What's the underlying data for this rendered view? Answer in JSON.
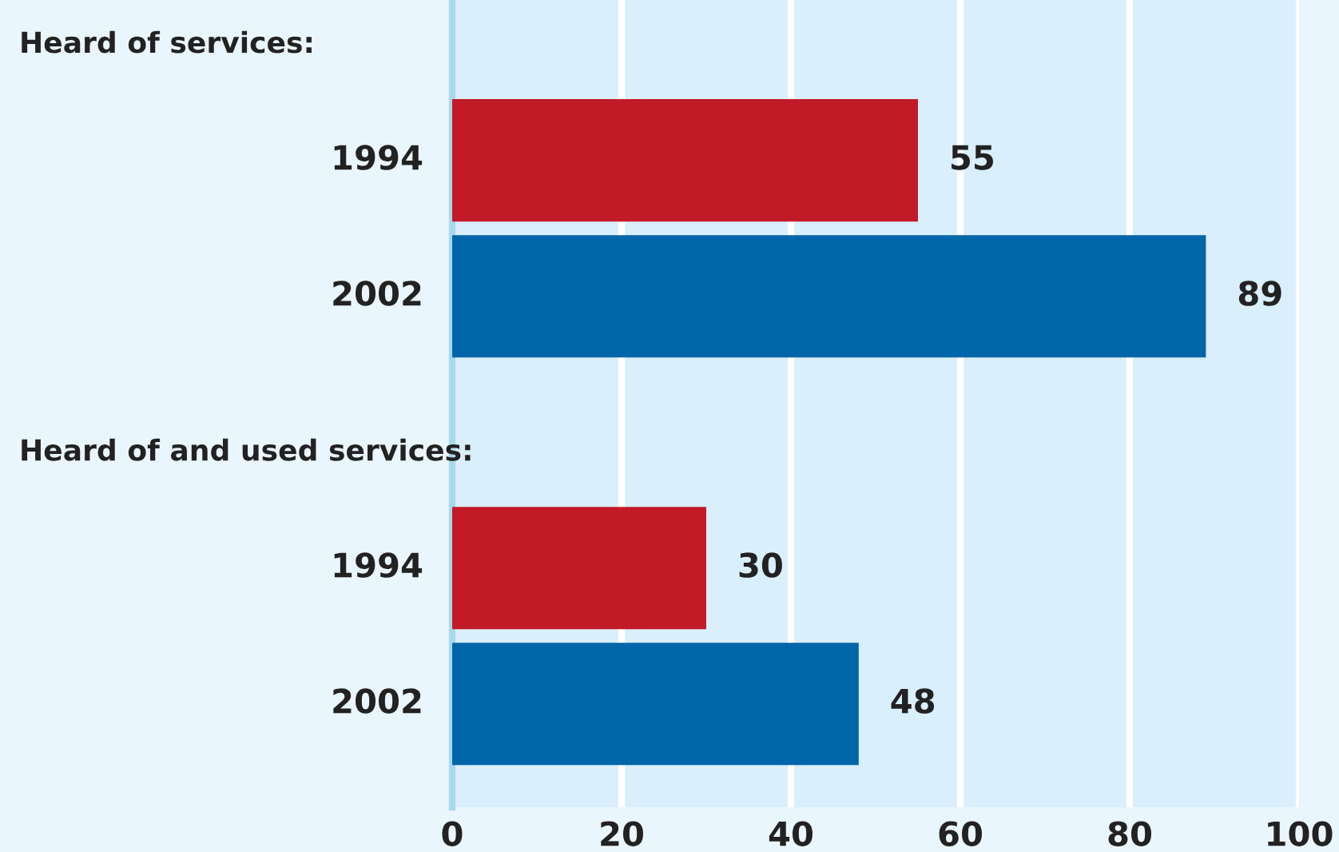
{
  "chart_data": {
    "type": "bar",
    "orientation": "horizontal",
    "categories": [
      null,
      "1994",
      "2002",
      null,
      "1994",
      "2002"
    ],
    "annotations": [
      "Heard of services:",
      "Heard of and used services:"
    ],
    "values": [
      null,
      55,
      89,
      null,
      30,
      48
    ],
    "colors": [
      null,
      "#c21b27",
      "#0066aa",
      null,
      "#c21b27",
      "#0066aa"
    ],
    "xlim": [
      0,
      100
    ],
    "xticks": [
      0,
      20,
      40,
      60,
      80,
      100
    ],
    "grid": "x",
    "data_labels": true,
    "legend": false
  }
}
